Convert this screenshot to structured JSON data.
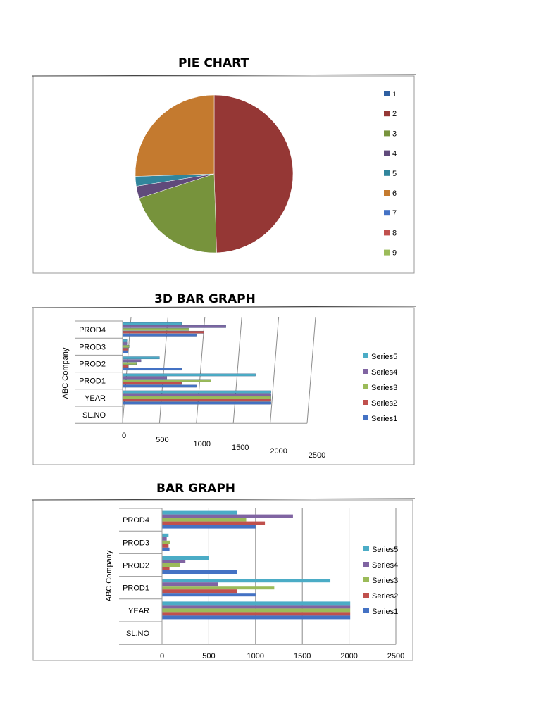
{
  "page": {
    "background": "#ffffff"
  },
  "colors": {
    "series1": "#4472C4",
    "series2": "#C0504D",
    "series3": "#9BBB59",
    "series4": "#8064A2",
    "series5": "#4BACC6",
    "slice2": "#953735",
    "slice3": "#77933C",
    "slice4": "#604A7B",
    "slice5": "#31859C",
    "slice6": "#C47A2F",
    "slice1": "#2E5FA1",
    "grid": "#8c8c8c",
    "frame": "#999999"
  },
  "chart_data": [
    {
      "type": "pie",
      "title": "PIE CHART",
      "legend_position": "right",
      "legend": [
        "1",
        "2",
        "3",
        "4",
        "5",
        "6",
        "7",
        "8",
        "9"
      ],
      "slices": [
        {
          "label": "1",
          "value": 0
        },
        {
          "label": "2",
          "value": 49.5
        },
        {
          "label": "3",
          "value": 20.5
        },
        {
          "label": "4",
          "value": 2.5
        },
        {
          "label": "5",
          "value": 2.0
        },
        {
          "label": "6",
          "value": 25.5
        },
        {
          "label": "7",
          "value": 0
        },
        {
          "label": "8",
          "value": 0
        },
        {
          "label": "9",
          "value": 0
        }
      ]
    },
    {
      "type": "bar",
      "style": "3d",
      "orientation": "horizontal",
      "title": "3D BAR GRAPH",
      "ylabel": "ABC Company",
      "categories": [
        "SL.NO",
        "YEAR",
        "PROD1",
        "PROD2",
        "PROD3",
        "PROD4"
      ],
      "xlim": [
        0,
        2500
      ],
      "xticks": [
        "0",
        "500",
        "1000",
        "1500",
        "2000",
        "2500"
      ],
      "grid": true,
      "legend_position": "right",
      "series": [
        {
          "name": "Series1",
          "values": [
            0,
            2010,
            1000,
            800,
            70,
            1000
          ]
        },
        {
          "name": "Series2",
          "values": [
            0,
            2010,
            800,
            80,
            70,
            1100
          ]
        },
        {
          "name": "Series3",
          "values": [
            0,
            2010,
            1200,
            190,
            90,
            900
          ]
        },
        {
          "name": "Series4",
          "values": [
            0,
            2010,
            600,
            250,
            60,
            1400
          ]
        },
        {
          "name": "Series5",
          "values": [
            0,
            2010,
            1800,
            500,
            60,
            800
          ]
        }
      ]
    },
    {
      "type": "bar",
      "orientation": "horizontal",
      "title": "BAR GRAPH",
      "ylabel": "ABC Company",
      "categories": [
        "SL.NO",
        "YEAR",
        "PROD1",
        "PROD2",
        "PROD3",
        "PROD4"
      ],
      "xlim": [
        0,
        2500
      ],
      "xticks": [
        "0",
        "500",
        "1000",
        "1500",
        "2000",
        "2500"
      ],
      "grid": true,
      "legend_position": "right",
      "series": [
        {
          "name": "Series1",
          "values": [
            0,
            2012,
            1000,
            800,
            80,
            1000
          ]
        },
        {
          "name": "Series2",
          "values": [
            0,
            2012,
            800,
            80,
            70,
            1100
          ]
        },
        {
          "name": "Series3",
          "values": [
            0,
            2012,
            1200,
            190,
            90,
            900
          ]
        },
        {
          "name": "Series4",
          "values": [
            0,
            2012,
            600,
            250,
            50,
            1400
          ]
        },
        {
          "name": "Series5",
          "values": [
            0,
            2012,
            1800,
            500,
            70,
            800
          ]
        }
      ]
    }
  ]
}
